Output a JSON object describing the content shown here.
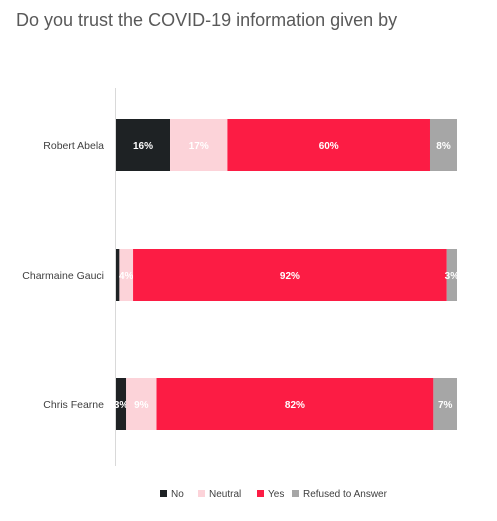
{
  "chart_data": {
    "type": "bar",
    "orientation": "horizontal",
    "stacked": true,
    "title": "Do you trust the COVID-19 information given by",
    "categories": [
      "Robert Abela",
      "Charmaine Gauci",
      "Chris Fearne"
    ],
    "series": [
      {
        "name": "No",
        "color": "#1e2224",
        "values": [
          16,
          1,
          3
        ],
        "labels": [
          "16%",
          "",
          "3%"
        ]
      },
      {
        "name": "Neutral",
        "color": "#fcd3d9",
        "values": [
          17,
          4,
          9
        ],
        "labels": [
          "17%",
          "4%",
          "9%"
        ]
      },
      {
        "name": "Yes",
        "color": "#fc1c44",
        "values": [
          60,
          92,
          82
        ],
        "labels": [
          "60%",
          "92%",
          "82%"
        ]
      },
      {
        "name": "Refused to Answer",
        "color": "#a6a6a6",
        "values": [
          8,
          3,
          7
        ],
        "labels": [
          "8%",
          "3%",
          "7%"
        ]
      }
    ],
    "legend_position": "bottom",
    "grid": false
  }
}
